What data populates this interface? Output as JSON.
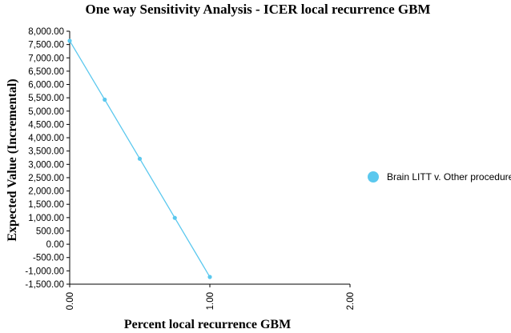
{
  "chart_data": {
    "type": "line",
    "title": "One way Sensitivity Analysis - ICER local recurrence GBM",
    "xlabel": "Percent local recurrence GBM",
    "ylabel": "Expected Value (Incremental)",
    "xlim": [
      0,
      2
    ],
    "ylim": [
      -1500,
      8000
    ],
    "x_ticks": [
      "0.00",
      "1.00",
      "2.00"
    ],
    "y_ticks": [
      "8,000.00",
      "7,500.00",
      "7,000.00",
      "6,500.00",
      "6,000.00",
      "5,500.00",
      "5,000.00",
      "4,500.00",
      "4,000.00",
      "3,500.00",
      "3,000.00",
      "2,500.00",
      "2,000.00",
      "1,500.00",
      "1,000.00",
      "500.00",
      "0.00",
      "-500.00",
      "-1,000.00",
      "-1,500.00"
    ],
    "grid": false,
    "legend_position": "right",
    "series": [
      {
        "name": "Brain LITT v. Other procedure",
        "color": "#5bc8ee",
        "x": [
          0,
          0.25,
          0.5,
          0.75,
          1.0
        ],
        "y": [
          7640,
          5430,
          3210,
          990,
          -1230
        ]
      }
    ]
  }
}
